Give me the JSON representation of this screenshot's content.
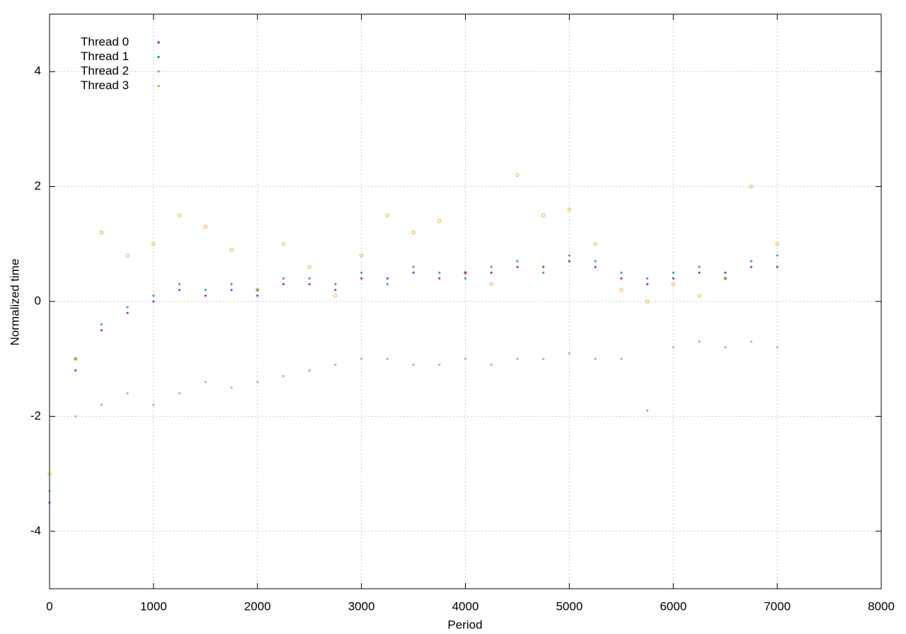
{
  "chart_data": {
    "type": "scatter",
    "xlabel": "Period",
    "ylabel": "Normalized time",
    "xlim": [
      0,
      8000
    ],
    "ylim": [
      -5,
      5
    ],
    "xticks": [
      0,
      1000,
      2000,
      3000,
      4000,
      5000,
      6000,
      7000,
      8000
    ],
    "yticks": [
      -4,
      -2,
      0,
      2,
      4
    ],
    "grid": true,
    "legend": "top left",
    "x": [
      0,
      250,
      500,
      750,
      1000,
      1250,
      1500,
      1750,
      2000,
      2250,
      2500,
      2750,
      3000,
      3250,
      3500,
      3750,
      4000,
      4250,
      4500,
      4750,
      5000,
      5250,
      5500,
      5750,
      6000,
      6250,
      6500,
      6750,
      7000
    ],
    "series": [
      {
        "name": "Thread 0",
        "color": "#9400d3",
        "values": [
          -3.5,
          -1.2,
          -0.5,
          -0.2,
          0,
          0.2,
          0.1,
          0.2,
          0.1,
          0.3,
          0.3,
          0.2,
          0.4,
          0.4,
          0.5,
          0.4,
          0.5,
          0.5,
          0.6,
          0.6,
          0.7,
          0.6,
          0.4,
          0.3,
          0.4,
          0.5,
          0.5,
          0.6,
          0.6
        ]
      },
      {
        "name": "Thread 1",
        "color": "#009e73",
        "values": [
          -3.3,
          -1.0,
          -0.4,
          -0.1,
          0.1,
          0.3,
          0.2,
          0.3,
          0.2,
          0.4,
          0.4,
          0.3,
          0.5,
          0.3,
          0.6,
          0.5,
          0.4,
          0.6,
          0.7,
          0.5,
          0.8,
          0.7,
          0.5,
          0.4,
          0.5,
          0.6,
          0.4,
          0.7,
          0.8
        ]
      },
      {
        "name": "Thread 2",
        "color": "#56b4e9",
        "values": [
          -4,
          -2,
          -1.8,
          -1.6,
          -1.8,
          -1.6,
          -1.4,
          -1.5,
          -1.4,
          -1.3,
          -1.2,
          -1.1,
          -1.0,
          -1.0,
          -1.1,
          -1.1,
          -1.0,
          -1.1,
          -1.0,
          -1.0,
          -0.9,
          -1.0,
          -1.0,
          -1.9,
          -0.8,
          -0.7,
          -0.8,
          -0.7,
          -0.8
        ]
      },
      {
        "name": "Thread 3",
        "color": "#e69f00",
        "values": [
          -3,
          -1,
          1.2,
          0.8,
          1.0,
          1.5,
          1.3,
          0.9,
          0.2,
          1.0,
          0.6,
          0.1,
          0.8,
          1.5,
          1.2,
          1.4,
          0.5,
          0.3,
          2.2,
          1.5,
          1.6,
          1.0,
          0.2,
          0.0,
          0.3,
          0.1,
          0.4,
          2.0,
          1.0
        ]
      }
    ]
  }
}
